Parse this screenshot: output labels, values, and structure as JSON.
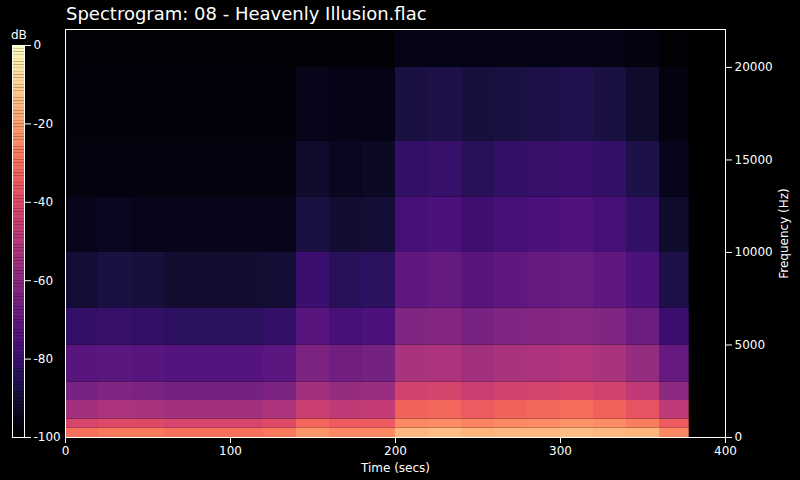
{
  "chart_data": {
    "type": "heatmap",
    "title": "Spectrogram: 08 - Heavenly Illusion.flac",
    "x_label": "Time (secs)",
    "y_label": "Frequency (Hz)",
    "xlim": [
      0,
      400
    ],
    "xticks": [
      0,
      100,
      200,
      300,
      400
    ],
    "ylim": [
      0,
      22050
    ],
    "yticks": [
      0,
      5000,
      10000,
      15000,
      20000
    ],
    "color": "magma",
    "time_bins": [
      0,
      20,
      40,
      60,
      80,
      100,
      120,
      140,
      160,
      180,
      200,
      220,
      240,
      260,
      280,
      300,
      320,
      340,
      360,
      378
    ],
    "freq_bins": [
      0,
      500,
      1000,
      2000,
      3000,
      5000,
      7000,
      10000,
      13000,
      16000,
      20000,
      22050
    ],
    "cells": [
      [
        -30,
        -28,
        -28,
        -30,
        -30,
        -30,
        -28,
        -22,
        -25,
        -25,
        -15,
        -14,
        -16,
        -15,
        -15,
        -14,
        -15,
        -16,
        -25
      ],
      [
        -42,
        -40,
        -40,
        -42,
        -42,
        -42,
        -40,
        -32,
        -35,
        -35,
        -25,
        -24,
        -26,
        -25,
        -24,
        -23,
        -24,
        -27,
        -35
      ],
      [
        -55,
        -52,
        -53,
        -55,
        -55,
        -55,
        -52,
        -45,
        -48,
        -47,
        -33,
        -32,
        -35,
        -33,
        -32,
        -31,
        -33,
        -37,
        -48
      ],
      [
        -65,
        -63,
        -64,
        -66,
        -66,
        -66,
        -64,
        -55,
        -58,
        -57,
        -43,
        -42,
        -45,
        -43,
        -42,
        -41,
        -43,
        -48,
        -60
      ],
      [
        -73,
        -72,
        -73,
        -74,
        -74,
        -74,
        -72,
        -64,
        -67,
        -66,
        -53,
        -52,
        -55,
        -53,
        -52,
        -51,
        -53,
        -58,
        -70
      ],
      [
        -82,
        -81,
        -82,
        -83,
        -83,
        -83,
        -82,
        -73,
        -77,
        -76,
        -63,
        -62,
        -65,
        -63,
        -62,
        -61,
        -63,
        -68,
        -80
      ],
      [
        -90,
        -88,
        -89,
        -91,
        -91,
        -91,
        -90,
        -80,
        -84,
        -83,
        -71,
        -70,
        -73,
        -71,
        -70,
        -69,
        -71,
        -76,
        -87
      ],
      [
        -95,
        -94,
        -95,
        -95,
        -95,
        -95,
        -95,
        -88,
        -91,
        -90,
        -77,
        -76,
        -79,
        -77,
        -76,
        -75,
        -77,
        -82,
        -92
      ],
      [
        -97,
        -97,
        -97,
        -97,
        -97,
        -97,
        -97,
        -92,
        -94,
        -93,
        -82,
        -81,
        -84,
        -82,
        -81,
        -80,
        -82,
        -87,
        -95
      ],
      [
        -98,
        -98,
        -98,
        -98,
        -98,
        -98,
        -98,
        -95,
        -96,
        -96,
        -88,
        -87,
        -89,
        -88,
        -87,
        -86,
        -88,
        -92,
        -97
      ],
      [
        -99,
        -99,
        -99,
        -99,
        -99,
        -99,
        -99,
        -99,
        -99,
        -99,
        -96,
        -96,
        -96,
        -96,
        -96,
        -96,
        -96,
        -97,
        -99
      ]
    ],
    "colorbar": {
      "label": "dB",
      "range": [
        -100,
        0
      ],
      "ticks": [
        0,
        -20,
        -40,
        -60,
        -80,
        -100
      ]
    }
  }
}
